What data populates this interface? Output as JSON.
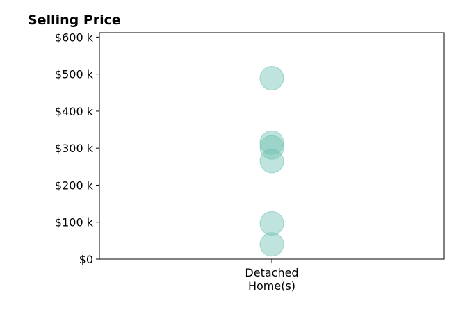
{
  "chart_data": {
    "type": "scatter",
    "title": "Selling Price",
    "categories": [
      "Detached\nHome(s)"
    ],
    "y_ticks": [
      "$0",
      "$100 k",
      "$200 k",
      "$300 k",
      "$400 k",
      "$500 k",
      "$600 k"
    ],
    "y_tick_values": [
      0,
      100000,
      200000,
      300000,
      400000,
      500000,
      600000
    ],
    "ylim": [
      0,
      612000
    ],
    "grid": false,
    "series": [
      {
        "category": "Detached\nHome(s)",
        "values": [
          40000,
          97000,
          265000,
          302000,
          315000,
          489000
        ],
        "color": "#70c1b3"
      }
    ]
  }
}
